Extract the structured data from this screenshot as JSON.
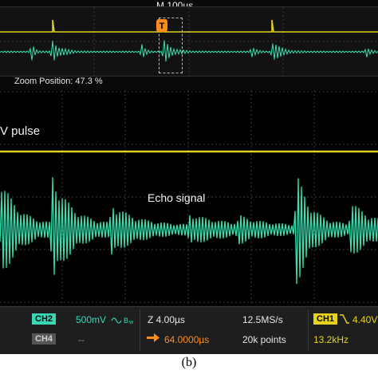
{
  "colors": {
    "ch1_trace": "#e0d020",
    "ch2_trace": "#35e0b0",
    "trigger_orange": "#ff8c1a",
    "ch2_badge": "#39d8b4",
    "ch4_badge": "#555555",
    "ch1_badge": "#e8d21c"
  },
  "header": {
    "timebase": "M 100µs"
  },
  "overview": {
    "zoom_position_label": "Zoom Position: 47.3 %"
  },
  "main": {
    "pulse_label": "V pulse",
    "echo_label": "Echo signal"
  },
  "status": {
    "ch2_badge": "CH2",
    "ch2_scale": "500mV",
    "ch2_coupling_icon": "ac-coupling-bandwidth-icon",
    "ch4_badge": "CH4",
    "ch4_scale": "--",
    "zoom_scale": "Z 4.00µs",
    "delay_value": "64.0000µs",
    "delay_icon": "horizontal-delay-arrow-icon",
    "sample_rate": "12.5MS/s",
    "record_length": "20k points",
    "ch1_badge": "CH1",
    "trigger_slope_icon": "falling-edge-icon",
    "trigger_level": "4.40V",
    "frequency": "13.2kHz"
  },
  "caption": "(b)"
}
